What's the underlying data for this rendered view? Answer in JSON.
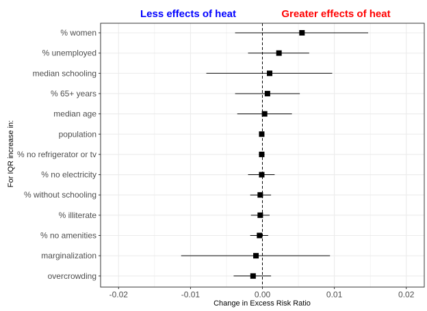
{
  "chart_data": {
    "type": "forest",
    "header_left": {
      "text": "Less effects of heat",
      "color": "#0000ff"
    },
    "header_right": {
      "text": "Greater effects of heat",
      "color": "#ff0000"
    },
    "xlabel": "Change in Excess Risk Ratio",
    "ylabel": "For IQR increase in:",
    "xlim": [
      -0.0225,
      0.0225
    ],
    "x_ticks": [
      -0.02,
      -0.01,
      0.0,
      0.01,
      0.02
    ],
    "x_tick_labels": [
      "-0.02",
      "-0.01",
      "0.00",
      "0.01",
      "0.02"
    ],
    "reference_line": 0.0,
    "grid": true,
    "rows": [
      {
        "label": "% women",
        "estimate": 0.0055,
        "lower": -0.0038,
        "upper": 0.0147
      },
      {
        "label": "% unemployed",
        "estimate": 0.0023,
        "lower": -0.002,
        "upper": 0.0065
      },
      {
        "label": "median schooling",
        "estimate": 0.001,
        "lower": -0.0078,
        "upper": 0.0097
      },
      {
        "label": "% 65+ years",
        "estimate": 0.0007,
        "lower": -0.0038,
        "upper": 0.0052
      },
      {
        "label": "median age",
        "estimate": 0.0003,
        "lower": -0.0035,
        "upper": 0.0041
      },
      {
        "label": "population",
        "estimate": -0.0001,
        "lower": -0.0004,
        "upper": 0.0001
      },
      {
        "label": "% no refrigerator or tv",
        "estimate": -0.0001,
        "lower": -0.0005,
        "upper": 0.0003
      },
      {
        "label": "% no electricity",
        "estimate": -0.0001,
        "lower": -0.002,
        "upper": 0.0017
      },
      {
        "label": "% without schooling",
        "estimate": -0.0003,
        "lower": -0.0017,
        "upper": 0.0012
      },
      {
        "label": "% illiterate",
        "estimate": -0.0003,
        "lower": -0.0016,
        "upper": 0.001
      },
      {
        "label": "% no amenities",
        "estimate": -0.0004,
        "lower": -0.0017,
        "upper": 0.0008
      },
      {
        "label": "marginalization",
        "estimate": -0.0009,
        "lower": -0.0113,
        "upper": 0.0094
      },
      {
        "label": "overcrowding",
        "estimate": -0.0013,
        "lower": -0.004,
        "upper": 0.0012
      }
    ],
    "colors": {
      "point": "#000000",
      "ci_line": "#000000",
      "grid": "#ebebeb",
      "frame": "#333333",
      "reference": "#000000"
    }
  }
}
